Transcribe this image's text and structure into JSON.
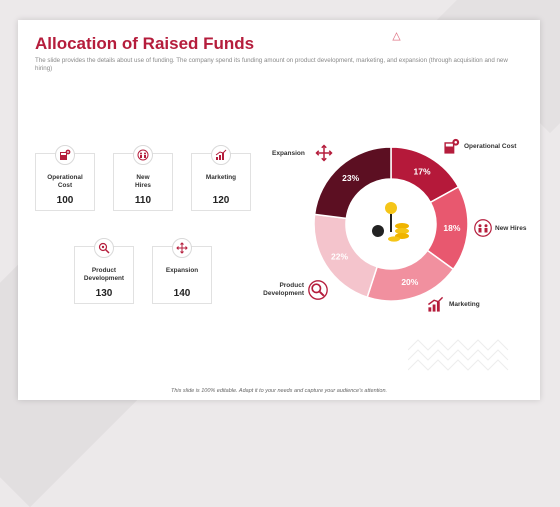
{
  "slide": {
    "title": "Allocation of Raised Funds",
    "subtitle": "The slide provides the details about use of funding. The company spend its funding amount on product development, marketing, and expansion (through acquisition and new hiring)",
    "footer": "This slide is 100% editable. Adapt it to your needs and capture your audience's attention."
  },
  "cards": [
    {
      "label": "Operational\nCost",
      "value": "100",
      "icon": "gear-calculator-icon"
    },
    {
      "label": "New\nHires",
      "value": "110",
      "icon": "people-icon"
    },
    {
      "label": "Marketing",
      "value": "120",
      "icon": "growth-chart-icon"
    },
    {
      "label": "Product\nDevelopment",
      "value": "130",
      "icon": "magnifier-gear-icon"
    },
    {
      "label": "Expansion",
      "value": "140",
      "icon": "expand-arrows-icon"
    }
  ],
  "chart_data": {
    "type": "pie",
    "variant": "donut",
    "labels": [
      "Operational Cost",
      "New Hires",
      "Marketing",
      "Product Development",
      "Expansion"
    ],
    "values": [
      17,
      18,
      20,
      22,
      23
    ],
    "value_labels": [
      "17%",
      "18%",
      "20%",
      "22%",
      "23%"
    ],
    "colors": [
      "#b5193a",
      "#e8586f",
      "#f1909f",
      "#f4c4cc",
      "#5c0f22"
    ],
    "center_icon": "person-money-icon"
  }
}
